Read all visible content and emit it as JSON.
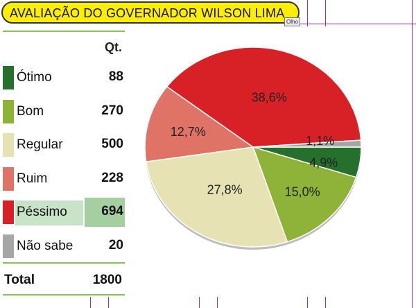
{
  "title": "AVALIAÇÃO DO GOVERNADOR WILSON LIMA",
  "tag": "Olho",
  "table": {
    "header": "Qt.",
    "rows": [
      {
        "label": "Ótimo",
        "value": "88",
        "color": "#25702c"
      },
      {
        "label": "Bom",
        "value": "270",
        "color": "#8fb338"
      },
      {
        "label": "Regular",
        "value": "500",
        "color": "#e6e2b3"
      },
      {
        "label": "Ruim",
        "value": "228",
        "color": "#df7466"
      },
      {
        "label": "Péssimo",
        "value": "694",
        "color": "#d82126"
      },
      {
        "label": "Não sabe",
        "value": "20",
        "color": "#a6a6a6"
      }
    ],
    "total_label": "Total",
    "total_value": "1800"
  },
  "chart_data": {
    "type": "pie",
    "categories": [
      "Ótimo",
      "Bom",
      "Regular",
      "Ruim",
      "Péssimo",
      "Não sabe"
    ],
    "values": [
      4.9,
      15.0,
      27.8,
      12.7,
      38.6,
      1.1
    ],
    "labels": [
      "4,9%",
      "15,0%",
      "27,8%",
      "12,7%",
      "38,6%",
      "1,1%"
    ],
    "colors": [
      "#25702c",
      "#8fb338",
      "#e6e2b3",
      "#df7466",
      "#d82126",
      "#a6a6a6"
    ]
  }
}
